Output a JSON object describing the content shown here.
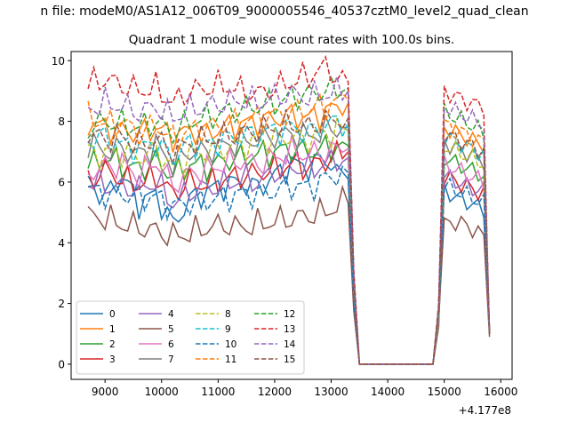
{
  "suptitle": "n file: modeM0/AS1A12_006T09_9000005546_40537cztM0_level2_quad_clean",
  "chart_data": {
    "type": "line",
    "title": "Quadrant 1 module wise count rates with 100.0s bins.",
    "xlabel": "",
    "ylabel": "",
    "x_offset_label": "+4.177e8",
    "xlim": [
      8400,
      16200
    ],
    "ylim": [
      -0.5,
      10.3
    ],
    "x_ticks": [
      9000,
      10000,
      11000,
      12000,
      13000,
      14000,
      15000,
      16000
    ],
    "y_ticks": [
      0,
      2,
      4,
      6,
      8,
      10
    ],
    "grid": false,
    "legend": {
      "placement": "lower-left",
      "columns": 4
    },
    "series": [
      {
        "name": "0",
        "color": "#1f77b4",
        "dash": "solid",
        "profile": [
          6.0,
          5.5,
          6.2,
          5.3,
          5.6,
          4.6,
          5.4,
          5.7,
          5.9,
          6.0,
          5.8,
          6.2,
          6.6,
          6.5,
          6.8,
          6.1,
          1.2
        ],
        "seg2": [
          5.7,
          5.5,
          5.3,
          5.1
        ]
      },
      {
        "name": "1",
        "color": "#ff7f0e",
        "dash": "solid",
        "profile": [
          8.0,
          7.8,
          7.7,
          7.6,
          7.8,
          7.5,
          7.7,
          7.6,
          7.8,
          7.9,
          8.0,
          8.1,
          8.2,
          8.1,
          8.3,
          8.6,
          1.0
        ],
        "seg2": [
          7.8,
          7.6,
          7.4,
          7.2
        ]
      },
      {
        "name": "2",
        "color": "#2ca02c",
        "dash": "solid",
        "profile": [
          6.5,
          6.8,
          6.6,
          6.4,
          6.7,
          6.2,
          6.6,
          6.5,
          6.7,
          6.8,
          6.9,
          7.0,
          7.1,
          7.0,
          7.1,
          7.2,
          1.0
        ],
        "seg2": [
          6.8,
          6.6,
          6.4,
          6.2
        ]
      },
      {
        "name": "3",
        "color": "#d62728",
        "dash": "solid",
        "profile": [
          6.0,
          6.4,
          6.1,
          5.9,
          6.2,
          5.6,
          6.0,
          5.9,
          6.1,
          6.2,
          6.3,
          6.4,
          6.6,
          6.5,
          6.7,
          7.0,
          1.0
        ],
        "seg2": [
          6.2,
          6.0,
          5.8,
          5.6
        ]
      },
      {
        "name": "4",
        "color": "#9467bd",
        "dash": "solid",
        "profile": [
          6.0,
          5.9,
          5.8,
          5.8,
          6.0,
          5.3,
          5.7,
          5.8,
          5.9,
          6.1,
          6.0,
          6.3,
          6.5,
          6.4,
          6.6,
          6.8,
          1.0
        ],
        "seg2": [
          6.2,
          6.0,
          5.8,
          5.7
        ]
      },
      {
        "name": "5",
        "color": "#8c564b",
        "dash": "solid",
        "profile": [
          4.9,
          4.8,
          4.6,
          4.5,
          4.4,
          4.2,
          4.3,
          4.5,
          4.6,
          4.5,
          4.6,
          4.7,
          4.8,
          4.9,
          5.0,
          5.3,
          0.9
        ],
        "seg2": [
          4.6,
          4.7,
          4.5,
          4.2
        ]
      },
      {
        "name": "6",
        "color": "#e377c2",
        "dash": "solid",
        "profile": [
          6.3,
          6.5,
          6.6,
          6.2,
          6.7,
          5.9,
          6.3,
          6.4,
          6.6,
          6.7,
          6.6,
          6.8,
          7.0,
          6.9,
          7.0,
          7.1,
          1.0
        ],
        "seg2": [
          6.6,
          6.4,
          6.2,
          6.0
        ]
      },
      {
        "name": "7",
        "color": "#7f7f7f",
        "dash": "solid",
        "profile": [
          7.3,
          7.0,
          7.1,
          6.9,
          7.2,
          6.6,
          7.0,
          7.0,
          7.2,
          7.3,
          7.4,
          7.5,
          7.6,
          7.5,
          7.7,
          7.8,
          1.0
        ],
        "seg2": [
          7.3,
          7.1,
          6.9,
          6.7
        ]
      },
      {
        "name": "8",
        "color": "#bcbd22",
        "dash": "dashed",
        "profile": [
          7.0,
          6.9,
          7.0,
          6.8,
          7.1,
          6.4,
          6.9,
          7.0,
          7.1,
          7.2,
          7.3,
          7.4,
          7.5,
          7.4,
          7.6,
          7.7,
          1.0
        ],
        "seg2": [
          7.2,
          7.0,
          6.8,
          6.6
        ]
      },
      {
        "name": "9",
        "color": "#17becf",
        "dash": "dashed",
        "profile": [
          7.4,
          7.5,
          7.2,
          7.1,
          7.3,
          6.8,
          7.3,
          7.2,
          7.4,
          7.5,
          7.6,
          7.7,
          7.8,
          7.6,
          7.9,
          8.0,
          1.0
        ],
        "seg2": [
          7.5,
          7.3,
          7.1,
          6.9
        ]
      },
      {
        "name": "10",
        "color": "#1f77b4",
        "dash": "dashed",
        "profile": [
          5.8,
          5.6,
          5.6,
          5.5,
          5.5,
          5.2,
          5.3,
          5.4,
          5.5,
          5.6,
          5.6,
          5.7,
          5.9,
          5.8,
          6.1,
          6.3,
          1.0
        ],
        "seg2": [
          5.9,
          5.7,
          5.5,
          5.3
        ]
      },
      {
        "name": "11",
        "color": "#ff7f0e",
        "dash": "dashed",
        "profile": [
          8.2,
          7.9,
          8.0,
          7.6,
          7.9,
          7.4,
          7.7,
          7.8,
          7.9,
          8.0,
          8.1,
          8.2,
          8.3,
          8.4,
          8.5,
          8.7,
          1.0
        ],
        "seg2": [
          7.9,
          7.7,
          7.5,
          7.3
        ]
      },
      {
        "name": "12",
        "color": "#2ca02c",
        "dash": "dashed",
        "profile": [
          7.8,
          8.0,
          7.9,
          7.8,
          8.0,
          7.6,
          8.0,
          8.1,
          8.3,
          8.4,
          8.5,
          8.6,
          8.8,
          8.9,
          9.0,
          9.1,
          1.0
        ],
        "seg2": [
          8.3,
          8.1,
          7.9,
          7.6
        ]
      },
      {
        "name": "13",
        "color": "#d62728",
        "dash": "dashed",
        "profile": [
          9.2,
          9.4,
          9.2,
          9.0,
          9.1,
          8.6,
          9.0,
          9.1,
          9.2,
          9.0,
          8.9,
          9.1,
          9.3,
          9.5,
          9.8,
          9.3,
          1.0
        ],
        "seg2": [
          9.0,
          8.8,
          8.6,
          8.5
        ]
      },
      {
        "name": "14",
        "color": "#9467bd",
        "dash": "dashed",
        "profile": [
          8.4,
          8.6,
          8.5,
          8.3,
          8.5,
          8.1,
          8.4,
          8.5,
          8.6,
          8.7,
          8.6,
          8.8,
          8.9,
          8.8,
          8.9,
          9.0,
          1.0
        ],
        "seg2": [
          8.5,
          8.3,
          8.1,
          7.9
        ]
      },
      {
        "name": "15",
        "color": "#8c564b",
        "dash": "dashed",
        "profile": [
          7.6,
          7.4,
          7.5,
          7.2,
          7.4,
          7.0,
          7.3,
          7.4,
          7.5,
          7.6,
          7.7,
          7.8,
          7.9,
          7.8,
          8.0,
          8.1,
          1.0
        ],
        "seg2": [
          7.6,
          7.4,
          7.2,
          7.0
        ]
      }
    ]
  }
}
